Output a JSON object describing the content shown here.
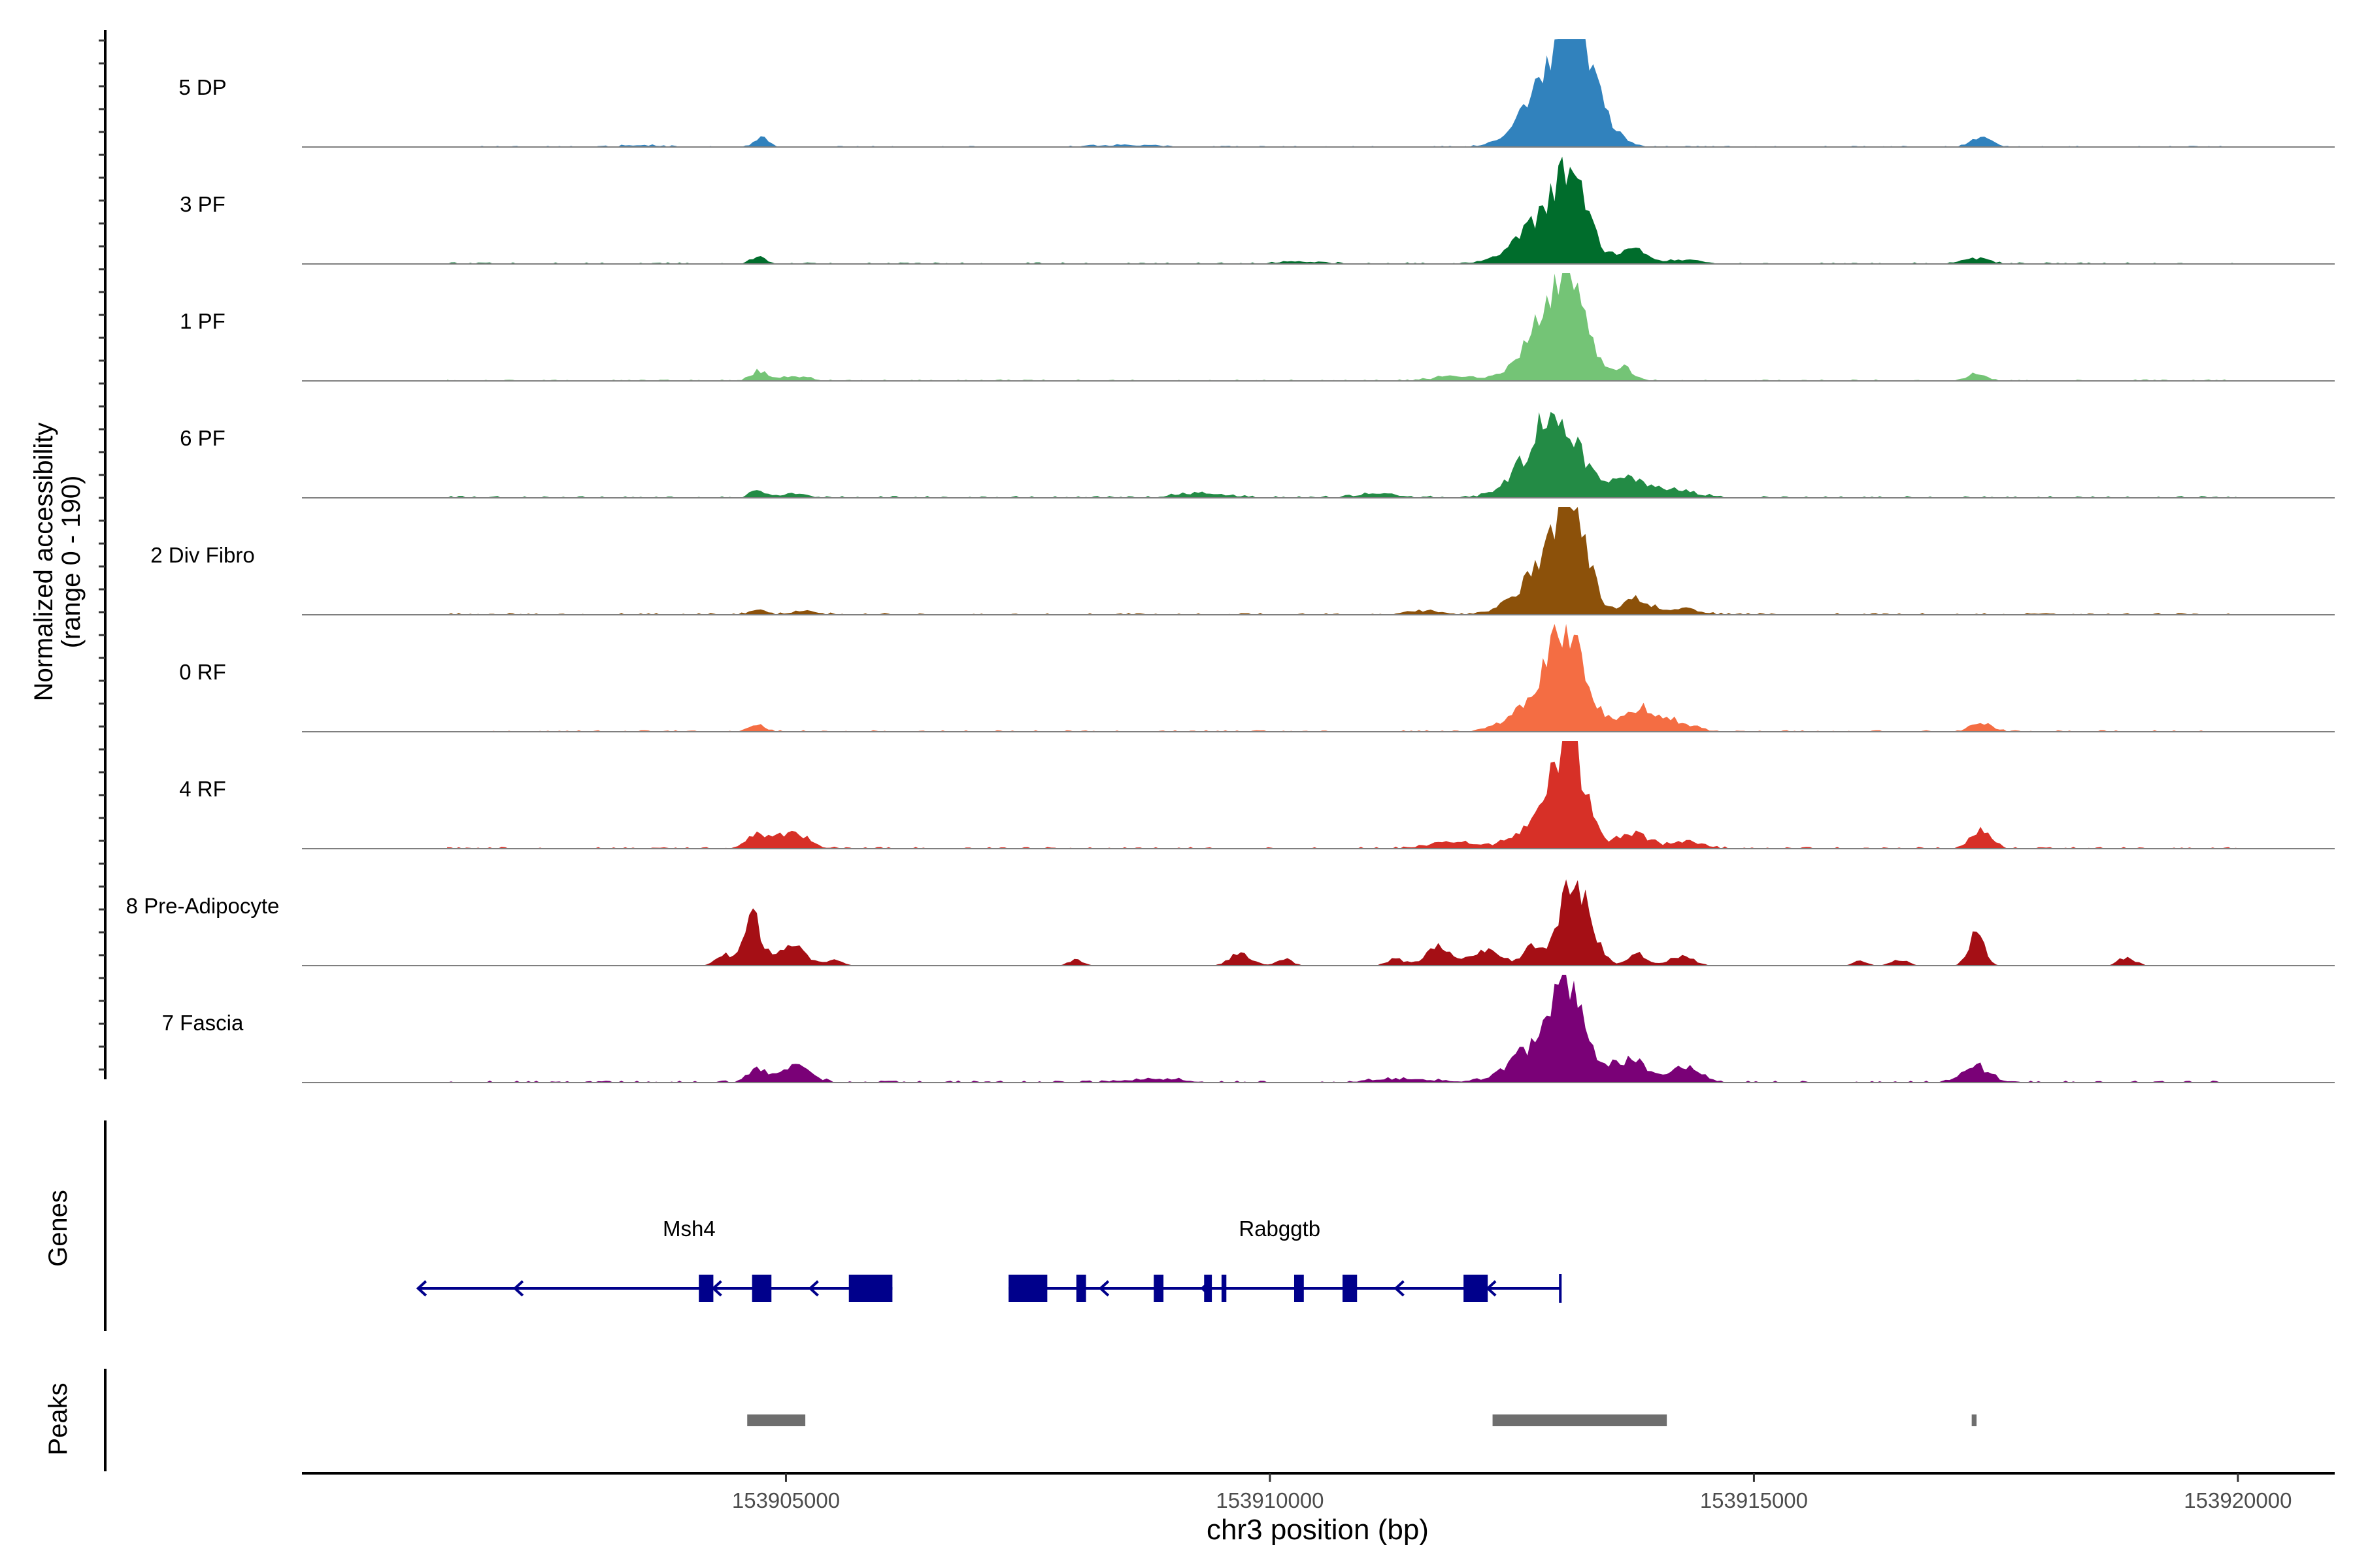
{
  "chart_data": {
    "type": "area",
    "title": "",
    "ylabel_line1": "Normalized accessibility",
    "ylabel_line2": "(range 0 - 190)",
    "xlabel": "chr3 position (bp)",
    "xlim": [
      153900000,
      153921000
    ],
    "ylim": [
      0,
      190
    ],
    "xticks": [
      {
        "value": 153905000,
        "label": "153905000"
      },
      {
        "value": 153910000,
        "label": "153910000"
      },
      {
        "value": 153915000,
        "label": "153915000"
      },
      {
        "value": 153920000,
        "label": "153920000"
      }
    ],
    "series": [
      {
        "name": "5 DP",
        "color": "#3182bd",
        "noise": 2.2,
        "peaks": [
          [
            153913150,
            190,
            180
          ],
          [
            153912820,
            90,
            250
          ],
          [
            153913500,
            22,
            150
          ],
          [
            153904750,
            18,
            70
          ],
          [
            153917350,
            16,
            110
          ],
          [
            153903500,
            3,
            200
          ],
          [
            153908500,
            3,
            300
          ]
        ]
      },
      {
        "name": "3 PF",
        "color": "#006d2c",
        "noise": 2.8,
        "peaks": [
          [
            153913100,
            135,
            190
          ],
          [
            153912750,
            55,
            260
          ],
          [
            153913750,
            25,
            140
          ],
          [
            153914300,
            8,
            160
          ],
          [
            153904720,
            12,
            80
          ],
          [
            153917300,
            10,
            130
          ],
          [
            153910300,
            4,
            240
          ]
        ]
      },
      {
        "name": "1 PF",
        "color": "#74c476",
        "noise": 2.6,
        "peaks": [
          [
            153913080,
            170,
            180
          ],
          [
            153912800,
            70,
            240
          ],
          [
            153913650,
            22,
            110
          ],
          [
            153904720,
            18,
            80
          ],
          [
            153905100,
            8,
            140
          ],
          [
            153917300,
            12,
            90
          ],
          [
            153911900,
            8,
            200
          ]
        ]
      },
      {
        "name": "6 PF",
        "color": "#238b45",
        "noise": 3.4,
        "peaks": [
          [
            153913000,
            115,
            220
          ],
          [
            153912750,
            50,
            260
          ],
          [
            153913700,
            35,
            180
          ],
          [
            153914200,
            14,
            200
          ],
          [
            153904700,
            12,
            80
          ],
          [
            153905100,
            8,
            120
          ],
          [
            153909300,
            8,
            250
          ],
          [
            153911100,
            6,
            250
          ]
        ]
      },
      {
        "name": "2 Div Fibro",
        "color": "#8c510a",
        "noise": 3.2,
        "peaks": [
          [
            153913100,
            185,
            170
          ],
          [
            153912750,
            60,
            230
          ],
          [
            153913800,
            28,
            140
          ],
          [
            153914300,
            10,
            150
          ],
          [
            153904700,
            8,
            80
          ],
          [
            153905200,
            6,
            130
          ],
          [
            153911600,
            6,
            200
          ]
        ]
      },
      {
        "name": "0 RF",
        "color": "#f46d43",
        "noise": 2.8,
        "peaks": [
          [
            153913080,
            140,
            190
          ],
          [
            153912800,
            60,
            260
          ],
          [
            153913800,
            40,
            180
          ],
          [
            153914200,
            16,
            180
          ],
          [
            153904700,
            10,
            90
          ],
          [
            153917350,
            15,
            110
          ]
        ]
      },
      {
        "name": "4 RF",
        "color": "#d73027",
        "noise": 3.2,
        "peaks": [
          [
            153913100,
            160,
            160
          ],
          [
            153912850,
            55,
            240
          ],
          [
            153913750,
            28,
            150
          ],
          [
            153914300,
            12,
            180
          ],
          [
            153904700,
            22,
            110
          ],
          [
            153905050,
            28,
            160
          ],
          [
            153917350,
            35,
            100
          ],
          [
            153911900,
            12,
            250
          ]
        ]
      },
      {
        "name": "8 Pre-Adipocyte",
        "color": "#a50f15",
        "noise": 0,
        "peaks": [
          [
            153904650,
            85,
            90
          ],
          [
            153904350,
            20,
            80
          ],
          [
            153905050,
            35,
            150
          ],
          [
            153905500,
            10,
            80
          ],
          [
            153908000,
            10,
            80
          ],
          [
            153909700,
            22,
            110
          ],
          [
            153910150,
            12,
            80
          ],
          [
            153911300,
            12,
            90
          ],
          [
            153911750,
            35,
            130
          ],
          [
            153912250,
            25,
            160
          ],
          [
            153912700,
            30,
            90
          ],
          [
            153913150,
            145,
            160
          ],
          [
            153913800,
            22,
            90
          ],
          [
            153914250,
            18,
            120
          ],
          [
            153916100,
            8,
            70
          ],
          [
            153916500,
            10,
            90
          ],
          [
            153917300,
            55,
            80
          ],
          [
            153918850,
            14,
            90
          ]
        ]
      },
      {
        "name": "7 Fascia",
        "color": "#7a0177",
        "noise": 3.6,
        "peaks": [
          [
            153913100,
            165,
            160
          ],
          [
            153912750,
            60,
            260
          ],
          [
            153913700,
            40,
            200
          ],
          [
            153914300,
            30,
            140
          ],
          [
            153904700,
            22,
            100
          ],
          [
            153905100,
            30,
            150
          ],
          [
            153917300,
            28,
            140
          ],
          [
            153908800,
            6,
            300
          ],
          [
            153911400,
            7,
            300
          ]
        ]
      }
    ]
  },
  "genes_panel": {
    "ylabel": "Genes",
    "genes": [
      {
        "name": "Msh4",
        "strand": "-",
        "start": 153901200,
        "end": 153906100,
        "label_pos": 153904000,
        "exons": [
          [
            153904100,
            153904250
          ],
          [
            153904650,
            153904850
          ],
          [
            153905650,
            153906100
          ]
        ],
        "arrows": [
          153901200,
          153902200,
          153904250,
          153905250
        ]
      },
      {
        "name": "Rabggtb",
        "strand": "-",
        "start": 153907300,
        "end": 153913000,
        "label_pos": 153910100,
        "exons": [
          [
            153907300,
            153907700
          ],
          [
            153908000,
            153908100
          ],
          [
            153908800,
            153908900
          ],
          [
            153909320,
            153909400
          ],
          [
            153909500,
            153909550
          ],
          [
            153910250,
            153910350
          ],
          [
            153910750,
            153910900
          ],
          [
            153912000,
            153912250
          ]
        ],
        "arrows": [
          153908250,
          153909300,
          153911300,
          153912250
        ]
      }
    ]
  },
  "peaks_panel": {
    "ylabel": "Peaks",
    "peaks": [
      [
        153904600,
        153905200
      ],
      [
        153912300,
        153914100
      ],
      [
        153917250,
        153917300
      ]
    ]
  }
}
